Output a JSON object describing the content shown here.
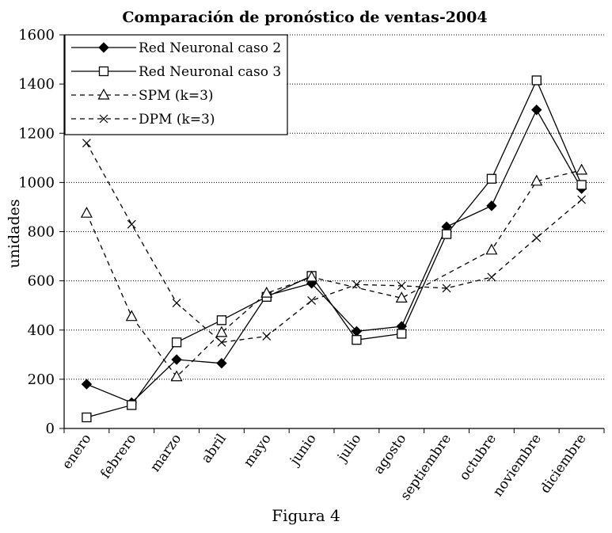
{
  "chart_data": {
    "type": "line",
    "title": "Comparación de pronóstico de ventas-2004",
    "xlabel": "",
    "ylabel": "unidades",
    "ylim": [
      0,
      1600
    ],
    "yticks": [
      0,
      200,
      400,
      600,
      800,
      1000,
      1200,
      1400,
      1600
    ],
    "grid": "horizontal",
    "legend_position": "top-left",
    "categories": [
      "enero",
      "febrero",
      "marzo",
      "abril",
      "mayo",
      "junio",
      "julio",
      "agosto",
      "septiembre",
      "octubre",
      "noviembre",
      "diciembre"
    ],
    "series": [
      {
        "name": "Red Neuronal caso 2",
        "style": "solid",
        "marker": "diamond-filled",
        "values": [
          180,
          105,
          280,
          265,
          540,
          590,
          395,
          415,
          820,
          905,
          1295,
          975
        ]
      },
      {
        "name": "Red Neuronal caso 3",
        "style": "solid",
        "marker": "square-open",
        "values": [
          45,
          95,
          350,
          440,
          535,
          620,
          360,
          385,
          790,
          1015,
          1415,
          990
        ]
      },
      {
        "name": "SPM (k=3)",
        "style": "dashed",
        "marker": "triangle-open",
        "values": [
          875,
          455,
          210,
          390,
          550,
          615,
          null,
          530,
          null,
          725,
          1005,
          1050
        ]
      },
      {
        "name": "DPM (k=3)",
        "style": "dashed",
        "marker": "x",
        "values": [
          1160,
          830,
          510,
          350,
          375,
          520,
          585,
          580,
          570,
          615,
          775,
          930
        ]
      }
    ]
  },
  "caption": "Figura 4"
}
